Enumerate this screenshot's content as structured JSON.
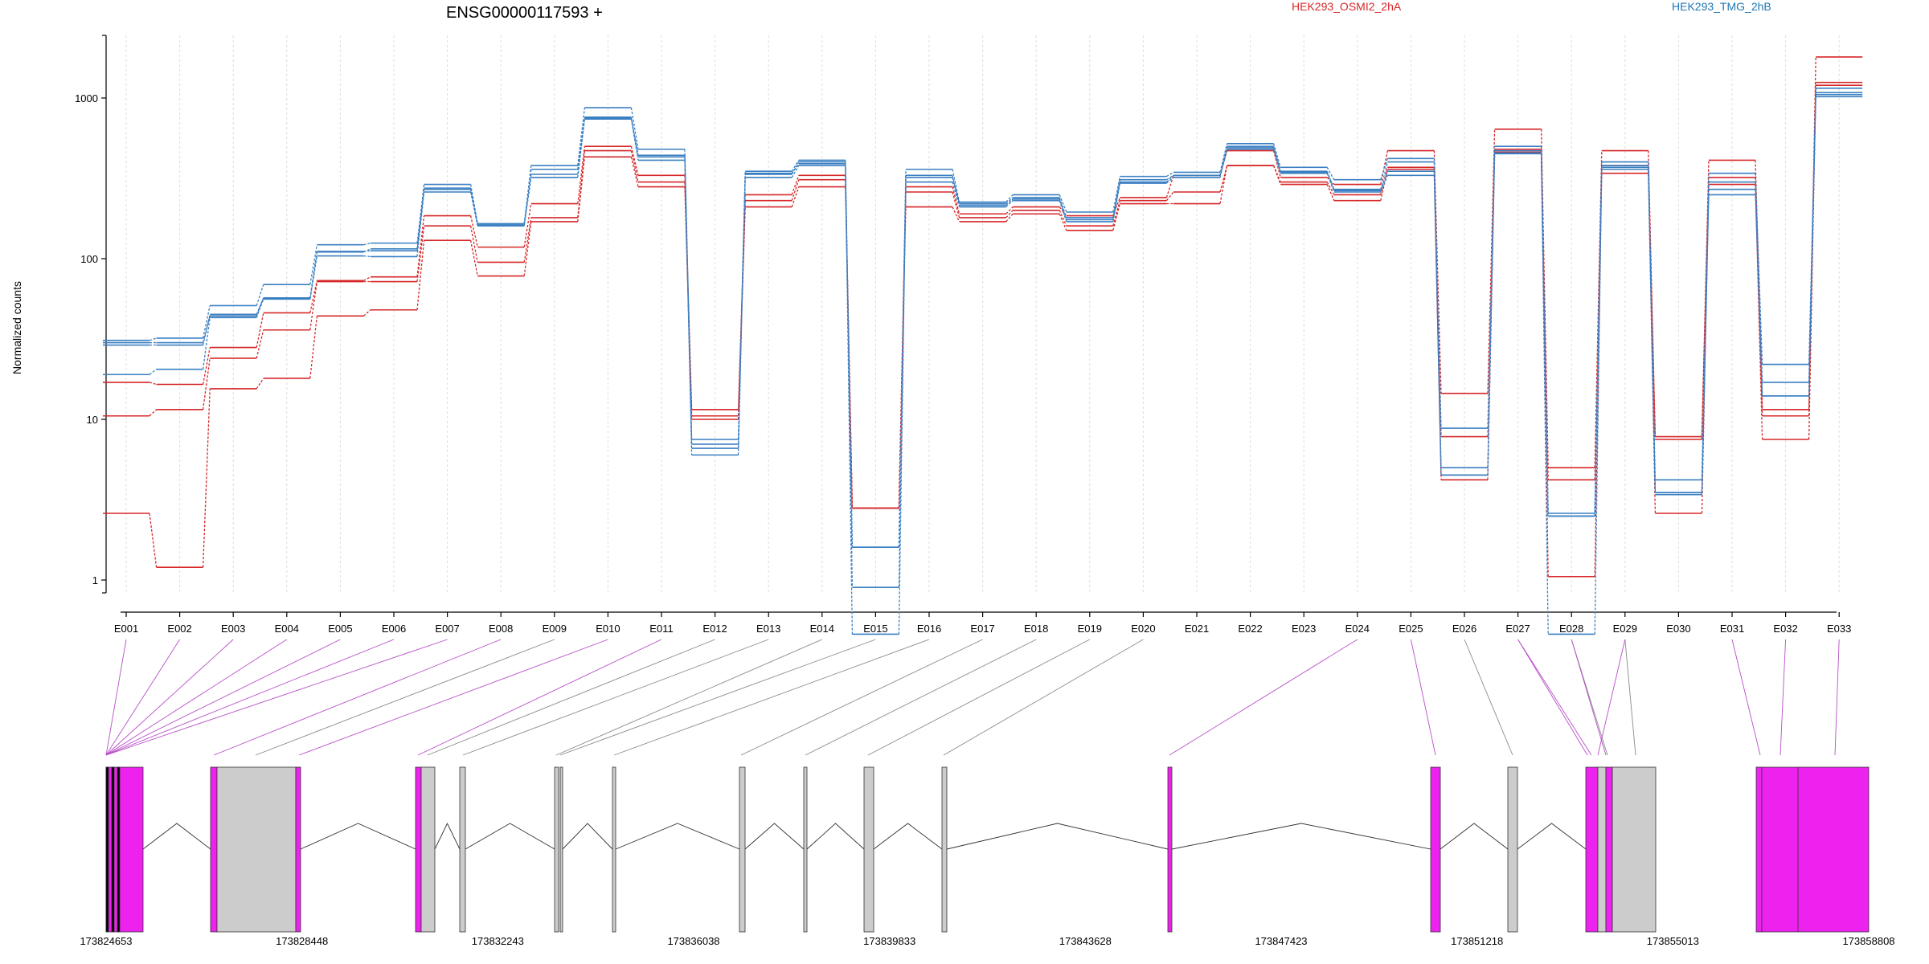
{
  "chart_data": {
    "type": "line",
    "title": "ENSG00000117593 +",
    "ylabel": "Normalized counts",
    "yscale": "log",
    "ylim": [
      0.35,
      2400
    ],
    "yticks": [
      {
        "value": 1,
        "label": "1"
      },
      {
        "value": 10,
        "label": "10"
      },
      {
        "value": 100,
        "label": "100"
      },
      {
        "value": 1000,
        "label": "1000"
      }
    ],
    "grid": "vertical",
    "legend": [
      {
        "label": "HEK293_OSMI2_2hA",
        "color": "#d62728"
      },
      {
        "label": "HEK293_TMG_2hB",
        "color": "#3a7fc2"
      }
    ],
    "categories": [
      "E001",
      "E002",
      "E003",
      "E004",
      "E005",
      "E006",
      "E007",
      "E008",
      "E009",
      "E010",
      "E011",
      "E012",
      "E013",
      "E014",
      "E015",
      "E016",
      "E017",
      "E018",
      "E019",
      "E020",
      "E021",
      "E022",
      "E023",
      "E024",
      "E025",
      "E026",
      "E027",
      "E028",
      "E029",
      "E030",
      "E031",
      "E032",
      "E033"
    ],
    "series": [
      {
        "group": "HEK293_OSMI2_2hA",
        "color": "#d62728",
        "values": [
          17,
          16.5,
          28,
          46,
          73,
          77,
          185,
          118,
          220,
          500,
          330,
          11.5,
          250,
          330,
          2.8,
          280,
          190,
          210,
          185,
          240,
          330,
          470,
          320,
          290,
          470,
          14.5,
          640,
          5,
          470,
          7.8,
          410,
          11.5,
          1800
        ]
      },
      {
        "group": "HEK293_OSMI2_2hA",
        "color": "#d62728",
        "values": [
          10.5,
          11.5,
          24,
          36,
          72,
          72,
          160,
          95,
          180,
          470,
          300,
          10.5,
          230,
          310,
          2.8,
          260,
          180,
          200,
          160,
          230,
          260,
          380,
          300,
          250,
          370,
          7.8,
          480,
          4.2,
          380,
          7.5,
          320,
          10.5,
          1250
        ]
      },
      {
        "group": "HEK293_OSMI2_2hA",
        "color": "#d62728",
        "values": [
          2.6,
          1.2,
          15.5,
          18,
          44,
          48,
          130,
          78,
          170,
          430,
          280,
          10,
          210,
          280,
          2.8,
          210,
          170,
          190,
          150,
          220,
          220,
          380,
          290,
          230,
          360,
          4.2,
          460,
          1.05,
          340,
          2.6,
          290,
          7.5,
          1200
        ]
      },
      {
        "group": "HEK293_TMG_2hB",
        "color": "#3a7fc2",
        "values": [
          31,
          32,
          51,
          69,
          122,
          125,
          290,
          165,
          380,
          870,
          480,
          7.5,
          350,
          410,
          1.6,
          360,
          225,
          250,
          195,
          325,
          345,
          520,
          370,
          310,
          420,
          8.8,
          500,
          2.6,
          400,
          4.2,
          340,
          22,
          1150
        ]
      },
      {
        "group": "HEK293_TMG_2hB",
        "color": "#3a7fc2",
        "values": [
          29,
          29,
          45,
          57,
          110,
          115,
          270,
          165,
          360,
          750,
          440,
          7,
          340,
          390,
          1.6,
          330,
          220,
          240,
          180,
          310,
          330,
          500,
          350,
          270,
          400,
          5,
          470,
          2.5,
          380,
          3.5,
          300,
          17,
          1050
        ]
      },
      {
        "group": "HEK293_TMG_2hB",
        "color": "#3a7fc2",
        "values": [
          19,
          20.5,
          43,
          56,
          104,
          103,
          260,
          160,
          320,
          740,
          410,
          6,
          320,
          380,
          0.9,
          300,
          210,
          230,
          170,
          295,
          320,
          480,
          340,
          260,
          330,
          4.5,
          450,
          2.5,
          360,
          3.4,
          250,
          14,
          1020
        ]
      },
      {
        "group": "HEK293_TMG_2hB",
        "color": "#3a7fc2",
        "values": [
          30,
          30,
          44,
          57,
          111,
          112,
          275,
          162,
          335,
          760,
          430,
          6.6,
          335,
          400,
          0.46,
          320,
          215,
          235,
          175,
          300,
          330,
          490,
          345,
          265,
          350,
          4.5,
          455,
          0.46,
          370,
          3.5,
          270,
          14,
          1080
        ]
      }
    ],
    "gene_model": {
      "coordinates": [
        "173824653",
        "173828448",
        "173832243",
        "173836038",
        "173839833",
        "173843628",
        "173847423",
        "173851218",
        "173855013",
        "173858808"
      ],
      "exon_usage_colors": {
        "differential": "#ee22ee",
        "normal": "#cccccc"
      }
    }
  }
}
